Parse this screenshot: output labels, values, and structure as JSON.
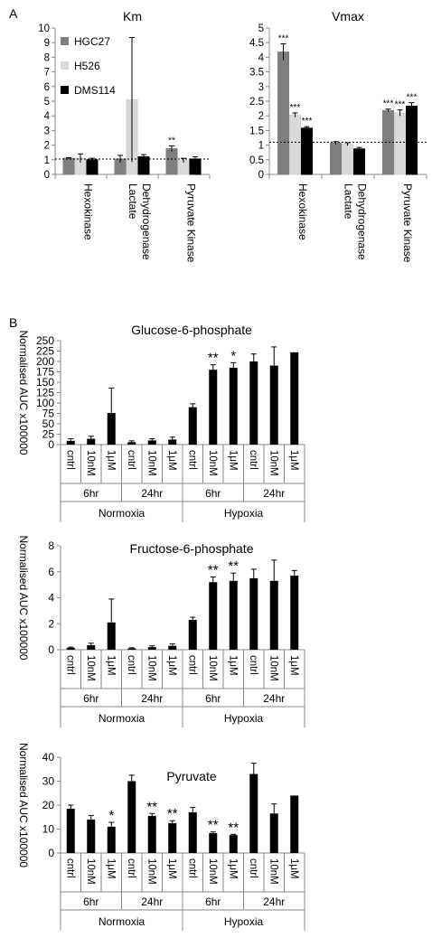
{
  "panel_labels": {
    "a": "A",
    "b": "B"
  },
  "chart_data": [
    {
      "id": "km",
      "type": "bar",
      "title": "Km",
      "categories": [
        "Hexokinase",
        "Lactate Dehydrogenase",
        "Pyruvate Kinase"
      ],
      "category_lines": [
        [
          "Hexokinase"
        ],
        [
          "Lactate",
          "Dehydrogenase"
        ],
        [
          "Pyruvate Kinase"
        ]
      ],
      "series": [
        {
          "name": "HGC27",
          "color": "#7f7f7f",
          "values": [
            1.1,
            1.05,
            1.75
          ],
          "errors": [
            0.05,
            0.25,
            0.2
          ]
        },
        {
          "name": "H526",
          "color": "#d9d9d9",
          "values": [
            1.1,
            5.1,
            0.95
          ],
          "errors": [
            0.3,
            4.25,
            0.15
          ]
        },
        {
          "name": "DMS114",
          "color": "#000000",
          "values": [
            1.0,
            1.2,
            1.05
          ],
          "errors": [
            0.1,
            0.15,
            0.15
          ]
        }
      ],
      "significance": [
        [
          "",
          "",
          "**"
        ],
        [
          "",
          "",
          ""
        ],
        [
          "",
          "",
          ""
        ]
      ],
      "ylim": [
        0,
        10
      ],
      "yticks": [
        "0",
        "1",
        "2",
        "3",
        "4",
        "5",
        "6",
        "7",
        "8",
        "9",
        "10"
      ],
      "reference_line": 1.05,
      "legend": "top-left"
    },
    {
      "id": "vmax",
      "type": "bar",
      "title": "Vmax",
      "categories": [
        "Hexokinase",
        "Lactate Dehydrogenase",
        "Pyruvate Kinase"
      ],
      "category_lines": [
        [
          "Hexokinase"
        ],
        [
          "Lactate",
          "Dehydrogenase"
        ],
        [
          "Pyruvate Kinase"
        ]
      ],
      "series": [
        {
          "name": "HGC27",
          "color": "#7f7f7f",
          "values": [
            4.18,
            1.07,
            2.18
          ],
          "errors": [
            0.28,
            0.05,
            0.05
          ]
        },
        {
          "name": "H526",
          "color": "#d9d9d9",
          "values": [
            2.03,
            1.03,
            2.1
          ],
          "errors": [
            0.07,
            0.05,
            0.1
          ]
        },
        {
          "name": "DMS114",
          "color": "#000000",
          "values": [
            1.58,
            0.87,
            2.33
          ],
          "errors": [
            0.05,
            0.05,
            0.12
          ]
        }
      ],
      "significance": [
        [
          "***",
          "",
          "***"
        ],
        [
          "***",
          "",
          "***"
        ],
        [
          "***",
          "",
          "***"
        ]
      ],
      "ylim": [
        0,
        5
      ],
      "yticks": [
        "0",
        "0.5",
        "1",
        "1.5",
        "2",
        "2.5",
        "3",
        "3.5",
        "4",
        "4.5",
        "5"
      ],
      "reference_line": 1.1
    },
    {
      "id": "g6p",
      "type": "bar",
      "title": "Glucose-6-phosphate",
      "ylabel": "Normalised AUC x100000",
      "categories": [
        "cntrl",
        "10nM",
        "1μM",
        "cntrl",
        "10nM",
        "1μM",
        "cntrl",
        "10nM",
        "1μM",
        "cntrl",
        "10nM",
        "1μM"
      ],
      "time_groups": [
        "6hr",
        "24hr",
        "6hr",
        "24hr"
      ],
      "condition_groups": [
        "Normoxia",
        "Hypoxia"
      ],
      "values": [
        9,
        14,
        76,
        6,
        10,
        12,
        90,
        180,
        185,
        200,
        190,
        222
      ],
      "errors": [
        5,
        6,
        60,
        3,
        4,
        6,
        8,
        12,
        12,
        18,
        45,
        0
      ],
      "significance": [
        "",
        "",
        "",
        "",
        "",
        "",
        "",
        "**",
        "*",
        "",
        "",
        ""
      ],
      "ylim": [
        0,
        250
      ],
      "yticks": [
        "0",
        "25",
        "50",
        "75",
        "100",
        "125",
        "150",
        "175",
        "200",
        "225",
        "250"
      ]
    },
    {
      "id": "f6p",
      "type": "bar",
      "title": "Fructose-6-phosphate",
      "ylabel": "Normalised AUC x100000",
      "categories": [
        "cntrl",
        "10nM",
        "1μM",
        "cntrl",
        "10nM",
        "1μM",
        "cntrl",
        "10nM",
        "1μM",
        "cntrl",
        "10nM",
        "1μM"
      ],
      "time_groups": [
        "6hr",
        "24hr",
        "6hr",
        "24hr"
      ],
      "condition_groups": [
        "Normoxia",
        "Hypoxia"
      ],
      "values": [
        0.15,
        0.35,
        2.1,
        0.1,
        0.2,
        0.3,
        2.3,
        5.2,
        5.3,
        5.5,
        5.3,
        5.7
      ],
      "errors": [
        0.05,
        0.15,
        1.8,
        0.05,
        0.1,
        0.15,
        0.2,
        0.4,
        0.6,
        0.7,
        1.6,
        0.4
      ],
      "significance": [
        "",
        "",
        "",
        "",
        "",
        "",
        "",
        "**",
        "**",
        "",
        "",
        ""
      ],
      "ylim": [
        0,
        8
      ],
      "yticks": [
        "0",
        "2",
        "4",
        "6",
        "8"
      ]
    },
    {
      "id": "pyr",
      "type": "bar",
      "title": "Pyruvate",
      "ylabel": "Normalised AUC x100000",
      "categories": [
        "cntrl",
        "10nM",
        "1μM",
        "cntrl",
        "10nM",
        "1μM",
        "cntrl",
        "10nM",
        "1μM",
        "cntrl",
        "10nM",
        "1μM"
      ],
      "time_groups": [
        "6hr",
        "24hr",
        "6hr",
        "24hr"
      ],
      "condition_groups": [
        "Normoxia",
        "Hypoxia"
      ],
      "values": [
        18.5,
        14,
        11,
        30,
        15.5,
        12.5,
        17,
        8.3,
        7.5,
        33,
        16.5,
        24
      ],
      "errors": [
        1.5,
        1.7,
        1.8,
        2.5,
        1,
        1,
        2,
        0.5,
        0.3,
        4.5,
        4,
        0
      ],
      "significance": [
        "",
        "",
        "*",
        "",
        "**",
        "**",
        "",
        "**",
        "**",
        "",
        "",
        ""
      ],
      "ylim": [
        0,
        40
      ],
      "yticks": [
        "0",
        "10",
        "20",
        "30",
        "40"
      ]
    }
  ]
}
